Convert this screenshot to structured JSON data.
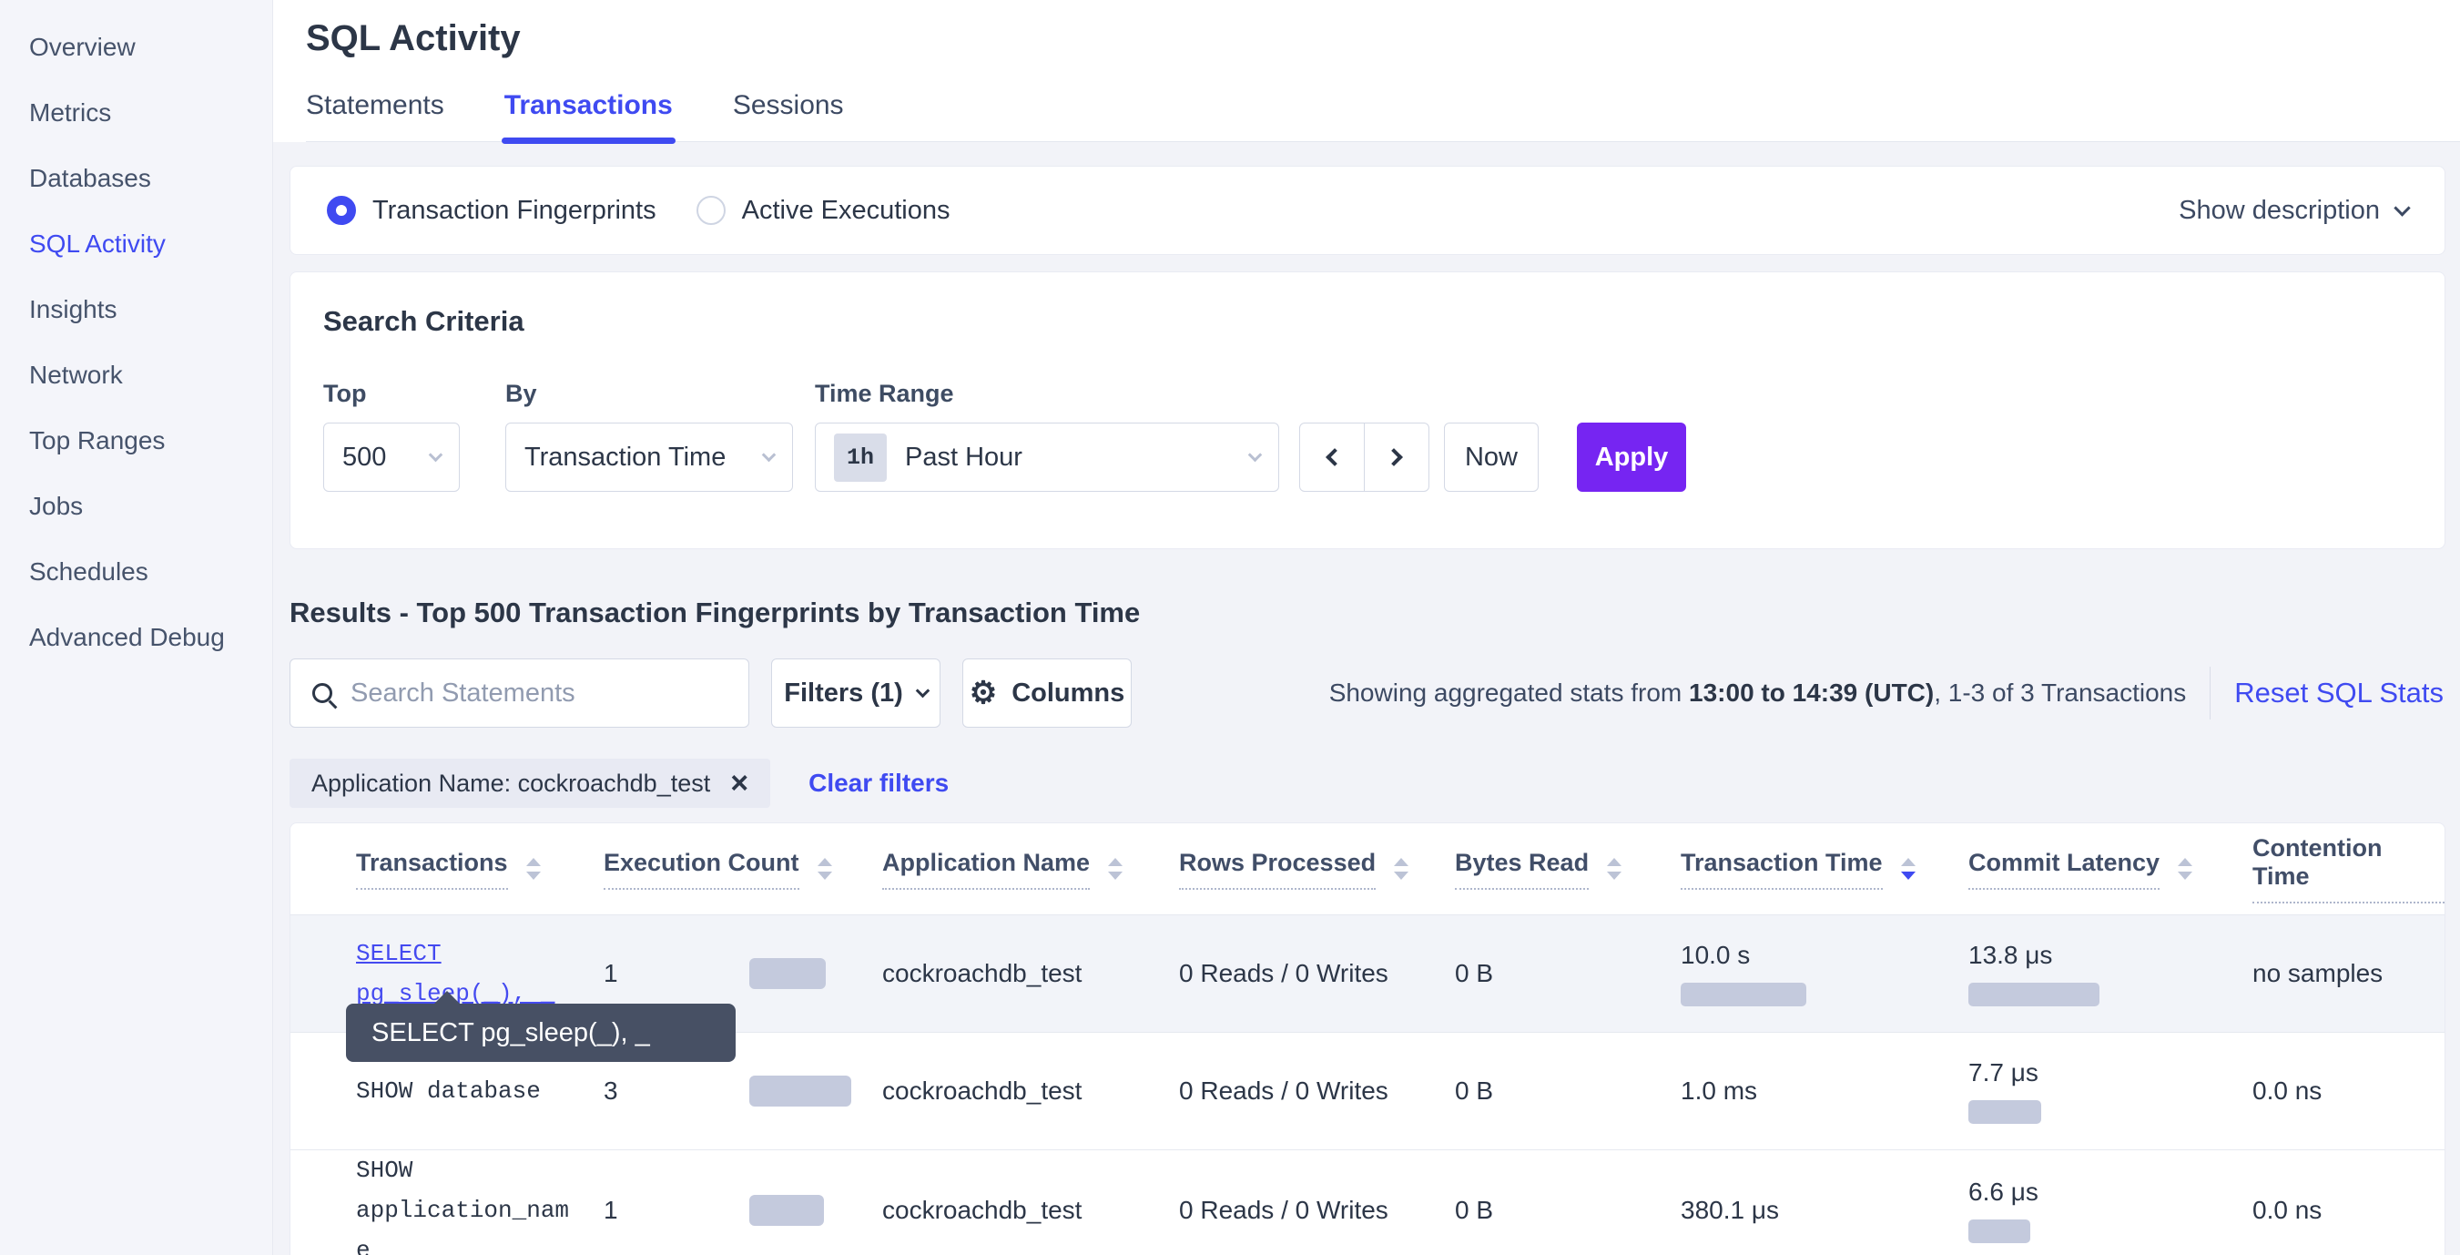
{
  "colors": {
    "accent": "#3f4af1",
    "apply_purple": "#7625f2",
    "bar_fill": "#c4cadd",
    "tooltip_bg": "#475064"
  },
  "sidebar": {
    "items": [
      {
        "label": "Overview",
        "active": false
      },
      {
        "label": "Metrics",
        "active": false
      },
      {
        "label": "Databases",
        "active": false
      },
      {
        "label": "SQL Activity",
        "active": true
      },
      {
        "label": "Insights",
        "active": false
      },
      {
        "label": "Network",
        "active": false
      },
      {
        "label": "Top Ranges",
        "active": false
      },
      {
        "label": "Jobs",
        "active": false
      },
      {
        "label": "Schedules",
        "active": false
      },
      {
        "label": "Advanced Debug",
        "active": false
      }
    ]
  },
  "header": {
    "title": "SQL Activity",
    "tabs": [
      {
        "label": "Statements",
        "active": false
      },
      {
        "label": "Transactions",
        "active": true
      },
      {
        "label": "Sessions",
        "active": false
      }
    ]
  },
  "view_toggle": {
    "options": [
      {
        "label": "Transaction Fingerprints",
        "selected": true
      },
      {
        "label": "Active Executions",
        "selected": false
      }
    ],
    "show_description": "Show description"
  },
  "search_criteria": {
    "title": "Search Criteria",
    "top": {
      "label": "Top",
      "value": "500"
    },
    "by": {
      "label": "By",
      "value": "Transaction Time"
    },
    "time_range": {
      "label": "Time Range",
      "badge": "1h",
      "value": "Past Hour"
    },
    "now_label": "Now",
    "apply_label": "Apply"
  },
  "results": {
    "heading": "Results - Top 500 Transaction Fingerprints by Transaction Time",
    "search_placeholder": "Search Statements",
    "filters_label": "Filters (1)",
    "columns_label": "Columns",
    "stats_prefix": "Showing aggregated stats from ",
    "stats_range": "13:00 to 14:39 (UTC)",
    "stats_suffix": ", 1-3 of 3 Transactions",
    "reset_label": "Reset SQL Stats",
    "filter_chip": "Application Name: cockroachdb_test",
    "clear_filters": "Clear filters"
  },
  "table": {
    "columns": [
      {
        "label": "Transactions",
        "sort": null
      },
      {
        "label": "Execution Count",
        "sort": null
      },
      {
        "label": "Application Name",
        "sort": null
      },
      {
        "label": "Rows Processed",
        "sort": null
      },
      {
        "label": "Bytes Read",
        "sort": null
      },
      {
        "label": "Transaction Time",
        "sort": "desc"
      },
      {
        "label": "Commit Latency",
        "sort": null
      },
      {
        "label": "Contention Time",
        "sort": null
      }
    ],
    "rows": [
      {
        "transaction": "SELECT pg_sleep(_), _",
        "link": true,
        "hovered": true,
        "execution_count": "1",
        "application_name": "cockroachdb_test",
        "rows_processed": "0 Reads / 0 Writes",
        "bytes_read": "0 B",
        "transaction_time": "10.0 s",
        "commit_latency": "13.8 μs",
        "contention_time": "no samples",
        "bars": {
          "exec": 84,
          "txn": 138,
          "commit": 144
        }
      },
      {
        "transaction": "SHOW database",
        "link": false,
        "hovered": false,
        "execution_count": "3",
        "application_name": "cockroachdb_test",
        "rows_processed": "0 Reads / 0 Writes",
        "bytes_read": "0 B",
        "transaction_time": "1.0 ms",
        "commit_latency": "7.7 μs",
        "contention_time": "0.0 ns",
        "bars": {
          "exec": 112,
          "txn": 0,
          "commit": 80
        }
      },
      {
        "transaction": "SHOW application_name",
        "link": false,
        "hovered": false,
        "execution_count": "1",
        "application_name": "cockroachdb_test",
        "rows_processed": "0 Reads / 0 Writes",
        "bytes_read": "0 B",
        "transaction_time": "380.1 μs",
        "commit_latency": "6.6 μs",
        "contention_time": "0.0 ns",
        "bars": {
          "exec": 82,
          "txn": 0,
          "commit": 68
        }
      }
    ]
  },
  "tooltip": {
    "text": "SELECT pg_sleep(_), _"
  }
}
